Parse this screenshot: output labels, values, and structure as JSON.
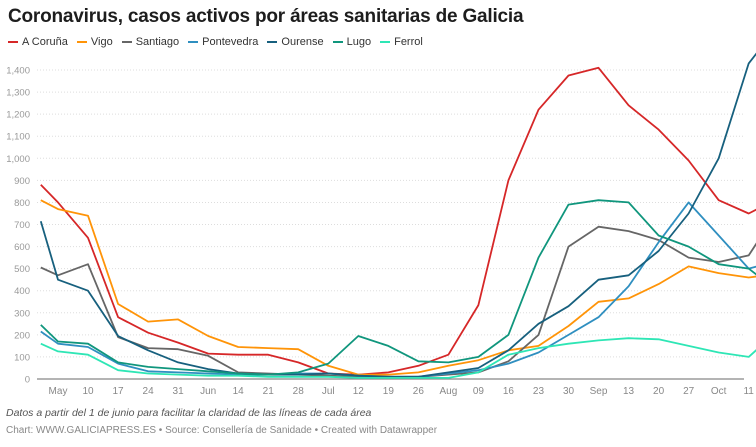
{
  "chart_data": {
    "type": "line",
    "title": "Coronavirus, casos activos por áreas sanitarias de Galicia",
    "note": "Datos a partir del 1 de junio para facilitar la claridad de las líneas de cada área",
    "credit": "Chart: WWW.GALICIAPRESS.ES • Source: Consellería de Sanidade • Created with Datawrapper",
    "ylim": [
      0,
      1500
    ],
    "yticks": [
      0,
      100,
      200,
      300,
      400,
      500,
      600,
      700,
      800,
      900,
      "1,000",
      "1,100",
      "1,200",
      "1,300",
      "1,400"
    ],
    "xticks": [
      {
        "date": "2020-05-03",
        "label": "May"
      },
      {
        "date": "2020-05-10",
        "label": "10"
      },
      {
        "date": "2020-05-17",
        "label": "17"
      },
      {
        "date": "2020-05-24",
        "label": "24"
      },
      {
        "date": "2020-05-31",
        "label": "31"
      },
      {
        "date": "2020-06-07",
        "label": "Jun"
      },
      {
        "date": "2020-06-14",
        "label": "14"
      },
      {
        "date": "2020-06-21",
        "label": "21"
      },
      {
        "date": "2020-06-28",
        "label": "28"
      },
      {
        "date": "2020-07-05",
        "label": "Jul"
      },
      {
        "date": "2020-07-12",
        "label": "12"
      },
      {
        "date": "2020-07-19",
        "label": "19"
      },
      {
        "date": "2020-07-26",
        "label": "26"
      },
      {
        "date": "2020-08-02",
        "label": "Aug"
      },
      {
        "date": "2020-08-09",
        "label": "09"
      },
      {
        "date": "2020-08-16",
        "label": "16"
      },
      {
        "date": "2020-08-23",
        "label": "23"
      },
      {
        "date": "2020-08-30",
        "label": "30"
      },
      {
        "date": "2020-09-06",
        "label": "Sep"
      },
      {
        "date": "2020-09-13",
        "label": "13"
      },
      {
        "date": "2020-09-20",
        "label": "20"
      },
      {
        "date": "2020-09-27",
        "label": "27"
      },
      {
        "date": "2020-10-04",
        "label": "Oct"
      },
      {
        "date": "2020-10-11",
        "label": "11"
      }
    ],
    "grid": true,
    "legend": "top-left",
    "x": [
      "2020-04-29",
      "2020-05-03",
      "2020-05-10",
      "2020-05-17",
      "2020-05-24",
      "2020-05-31",
      "2020-06-07",
      "2020-06-14",
      "2020-06-21",
      "2020-06-28",
      "2020-07-05",
      "2020-07-12",
      "2020-07-19",
      "2020-07-26",
      "2020-08-02",
      "2020-08-09",
      "2020-08-16",
      "2020-08-23",
      "2020-08-30",
      "2020-09-06",
      "2020-09-13",
      "2020-09-20",
      "2020-09-27",
      "2020-10-04",
      "2020-10-11",
      "2020-10-13"
    ],
    "series": [
      {
        "name": "A Coruña",
        "color": "#d62728",
        "values": [
          880,
          800,
          640,
          280,
          210,
          165,
          115,
          110,
          110,
          75,
          25,
          20,
          30,
          60,
          110,
          335,
          900,
          1220,
          1375,
          1410,
          1240,
          1130,
          990,
          810,
          750,
          770
        ]
      },
      {
        "name": "Vigo",
        "color": "#ff9408",
        "values": [
          810,
          770,
          740,
          340,
          260,
          270,
          195,
          145,
          140,
          135,
          60,
          20,
          20,
          30,
          60,
          85,
          130,
          150,
          240,
          350,
          365,
          430,
          510,
          480,
          460,
          465
        ]
      },
      {
        "name": "Santiago",
        "color": "#666666",
        "values": [
          505,
          470,
          520,
          190,
          140,
          135,
          105,
          30,
          25,
          20,
          15,
          10,
          10,
          10,
          20,
          30,
          80,
          200,
          600,
          690,
          670,
          630,
          550,
          530,
          560,
          620
        ]
      },
      {
        "name": "Pontevedra",
        "color": "#2f8fc0",
        "values": [
          215,
          160,
          145,
          70,
          35,
          30,
          25,
          20,
          20,
          25,
          25,
          15,
          10,
          10,
          25,
          40,
          70,
          120,
          200,
          280,
          420,
          620,
          800,
          650,
          500,
          510
        ]
      },
      {
        "name": "Ourense",
        "color": "#17607e",
        "values": [
          715,
          450,
          400,
          195,
          130,
          75,
          45,
          25,
          20,
          20,
          25,
          15,
          10,
          10,
          30,
          50,
          130,
          250,
          330,
          450,
          470,
          580,
          750,
          1000,
          1430,
          1480
        ]
      },
      {
        "name": "Lugo",
        "color": "#10967d",
        "values": [
          245,
          170,
          160,
          75,
          55,
          45,
          35,
          25,
          20,
          30,
          70,
          195,
          150,
          80,
          75,
          100,
          200,
          550,
          790,
          810,
          800,
          650,
          600,
          520,
          500,
          470
        ]
      },
      {
        "name": "Ferrol",
        "color": "#2ee6b5",
        "values": [
          160,
          125,
          110,
          40,
          25,
          20,
          15,
          15,
          10,
          10,
          10,
          5,
          5,
          5,
          5,
          30,
          110,
          140,
          160,
          175,
          185,
          180,
          150,
          120,
          100,
          135
        ]
      }
    ]
  }
}
